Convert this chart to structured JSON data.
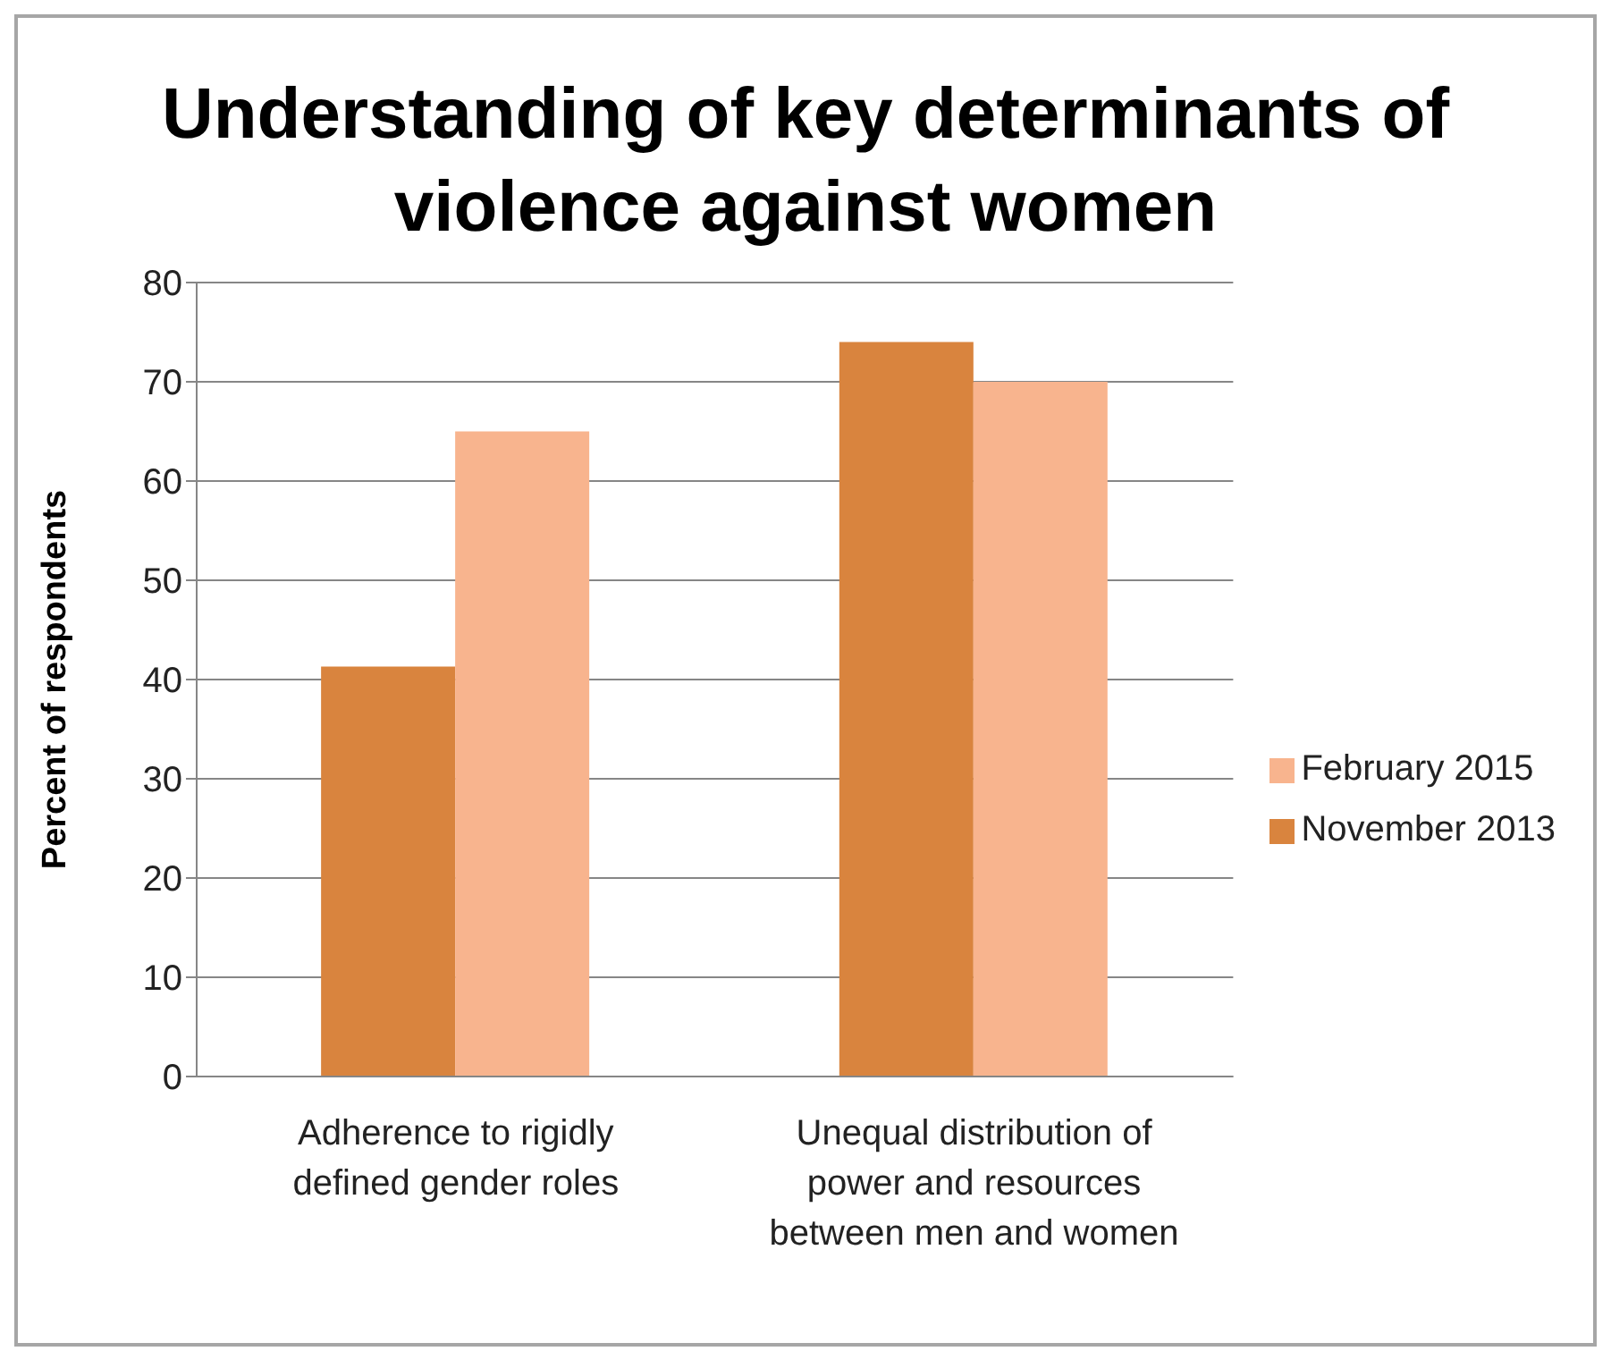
{
  "chart_data": {
    "type": "bar",
    "title": "Understanding of key determinants of violence against women",
    "ylabel": "Percent of respondents",
    "categories": [
      "Adherence to rigidly defined gender roles",
      "Unequal distribution of power and resources between men and women"
    ],
    "series": [
      {
        "name": "November 2013",
        "color": "#d9843e",
        "values": [
          41.3,
          74
        ]
      },
      {
        "name": "February 2015",
        "color": "#f8b48e",
        "values": [
          65,
          70
        ]
      }
    ],
    "ylim": [
      0,
      80
    ],
    "yticks": [
      0,
      10,
      20,
      30,
      40,
      50,
      60,
      70,
      80
    ],
    "grid": "y",
    "legend": "right"
  }
}
